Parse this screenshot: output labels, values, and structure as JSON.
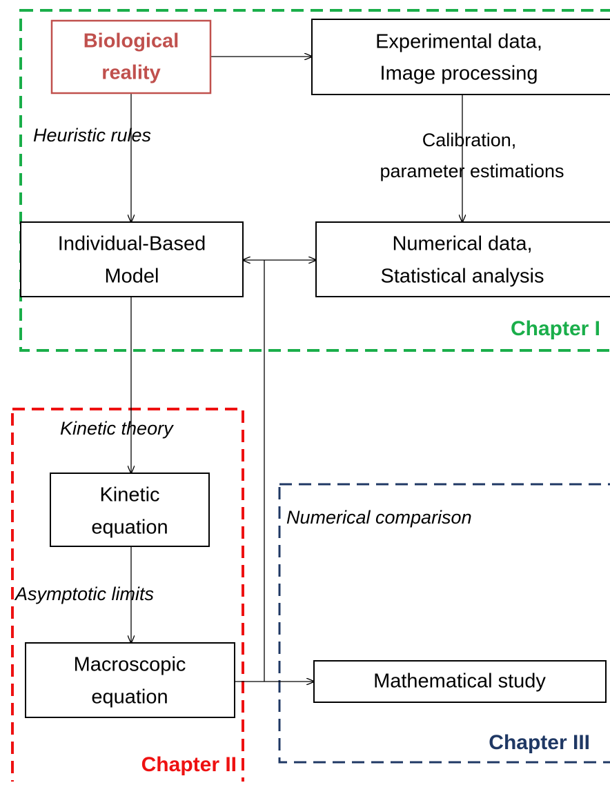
{
  "nodes": [
    {
      "lines": [
        "Biological",
        "reality"
      ]
    },
    {
      "lines": [
        "Experimental data,",
        "Image processing"
      ]
    },
    {
      "lines": [
        "Individual-Based",
        "Model"
      ]
    },
    {
      "lines": [
        "Numerical data,",
        "Statistical analysis"
      ]
    },
    {
      "lines": [
        "Kinetic",
        "equation"
      ]
    },
    {
      "lines": [
        "Macroscopic",
        "equation"
      ]
    },
    {
      "lines": [
        "Mathematical study"
      ]
    }
  ],
  "edge_labels": {
    "heuristic": "Heuristic  rules",
    "calibration": [
      "Calibration,",
      "parameter estimations"
    ],
    "kinetic_theory": "Kinetic  theory",
    "asymptotic": "Asymptotic limits",
    "numerical_comparison": "Numerical comparison"
  },
  "chapters": [
    "Chapter I",
    "Chapter II",
    "Chapter III"
  ]
}
